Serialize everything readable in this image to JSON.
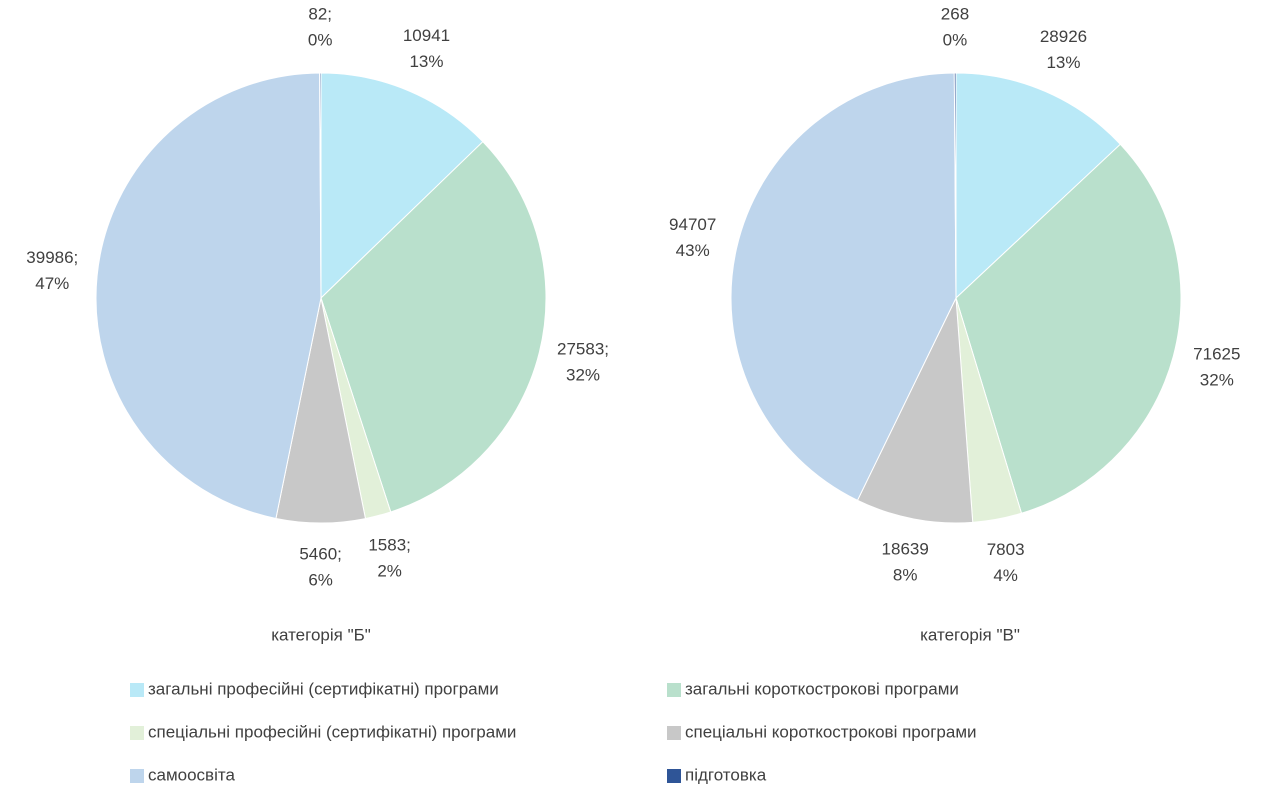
{
  "chart_data": [
    {
      "type": "pie",
      "title": "категорія \"Б\"",
      "categories": [
        "загальні професійні (сертифікатні) програми",
        "загальні короткострокові програми",
        "спеціальні професійні (сертифікатні) програми",
        "спеціальні короткострокові програми",
        "самоосвіта",
        "підготовка"
      ],
      "values": [
        10941,
        27583,
        1583,
        5460,
        39986,
        82
      ],
      "value_labels": [
        "10941",
        "27583;",
        "1583;",
        "5460;",
        "39986;",
        "82;"
      ],
      "percent_labels": [
        "13%",
        "32%",
        "2%",
        "6%",
        "47%",
        "0%"
      ],
      "colors": [
        "#b9e9f7",
        "#b9e0cc",
        "#e2f0d9",
        "#c8c8c8",
        "#bed5ec",
        "#2f5597"
      ]
    },
    {
      "type": "pie",
      "title": "категорія \"В\"",
      "categories": [
        "загальні професійні (сертифікатні) програми",
        "загальні короткострокові програми",
        "спеціальні професійні (сертифікатні) програми",
        "спеціальні короткострокові програми",
        "самоосвіта",
        "підготовка"
      ],
      "values": [
        28926,
        71625,
        7803,
        18639,
        94707,
        268
      ],
      "percent_labels": [
        "13%",
        "32%",
        "4%",
        "8%",
        "43%",
        "0%"
      ],
      "colors": [
        "#b9e9f7",
        "#b9e0cc",
        "#e2f0d9",
        "#c8c8c8",
        "#bed5ec",
        "#2f5597"
      ]
    }
  ]
}
